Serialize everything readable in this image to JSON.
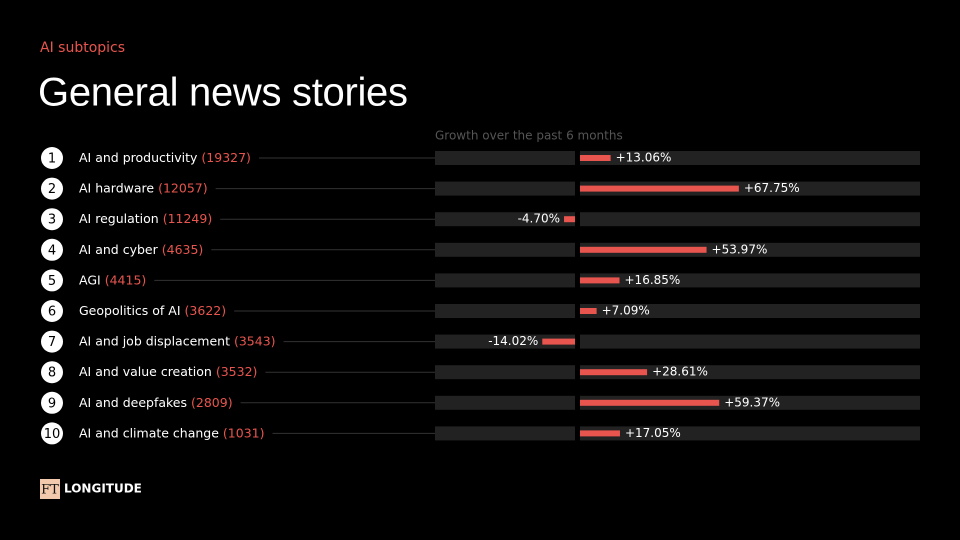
{
  "chart_data": {
    "type": "bar",
    "kicker": "AI subtopics",
    "title": "General news stories",
    "x_label": "Growth over the past 6 months",
    "ranks": [
      1,
      2,
      3,
      4,
      5,
      6,
      7,
      8,
      9,
      10
    ],
    "categories": [
      "AI and productivity",
      "AI hardware",
      "AI regulation",
      "AI and cyber",
      "AGI",
      "Geopolitics of AI",
      "AI and job displacement",
      "AI and value creation",
      "AI and deepfakes",
      "AI and climate change"
    ],
    "counts": [
      19327,
      12057,
      11249,
      4635,
      4415,
      3622,
      3543,
      3532,
      2809,
      1031
    ],
    "count_labels": [
      "(19327)",
      "(12057)",
      "(11249)",
      "(4635)",
      "(4415)",
      "(3622)",
      "(3543)",
      "(3532)",
      "(2809)",
      "(1031)"
    ],
    "values": [
      13.06,
      67.75,
      -4.7,
      53.97,
      16.85,
      7.09,
      -14.02,
      28.61,
      59.37,
      17.05
    ],
    "value_labels": [
      "+13.06%",
      "+67.75%",
      "-4.70%",
      "+53.97%",
      "+16.85%",
      "+7.09%",
      "-14.02%",
      "+28.61%",
      "+59.37%",
      "+17.05%"
    ],
    "color": "#e8554e",
    "xlim": [
      -60,
      145
    ]
  },
  "branding": {
    "mark": "FT",
    "name": "LONGITUDE"
  }
}
